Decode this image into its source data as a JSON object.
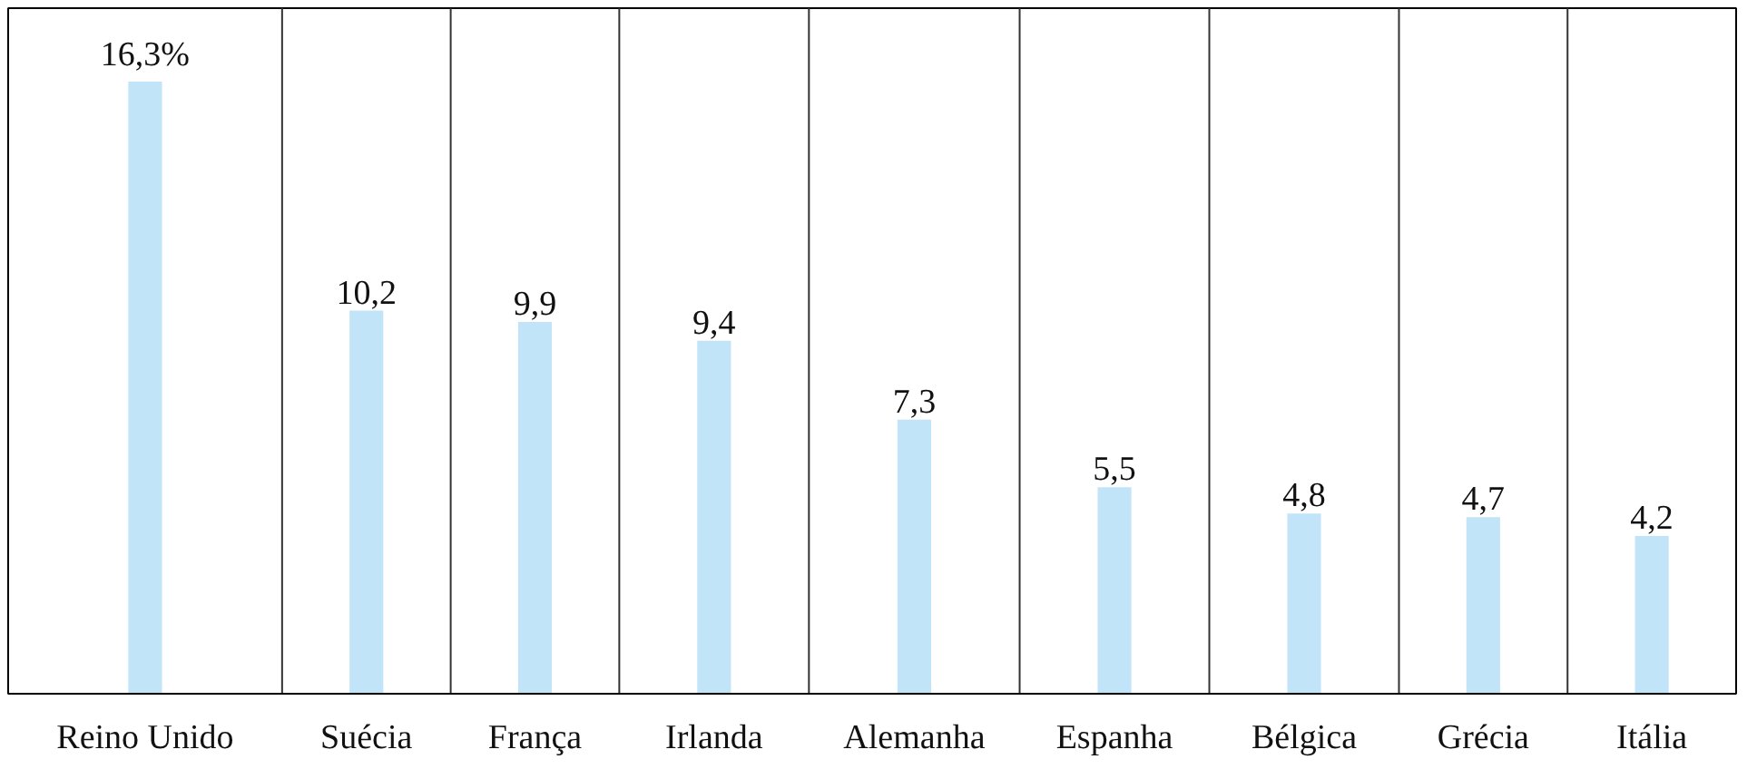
{
  "chart_data": {
    "type": "bar",
    "categories": [
      "Reino Unido",
      "Suécia",
      "França",
      "Irlanda",
      "Alemanha",
      "Espanha",
      "Bélgica",
      "Grécia",
      "Itália"
    ],
    "values": [
      16.3,
      10.2,
      9.9,
      9.4,
      7.3,
      5.5,
      4.8,
      4.7,
      4.2
    ],
    "value_labels": [
      "16,3%",
      "10,2",
      "9,9",
      "9,4",
      "7,3",
      "5,5",
      "4,8",
      "4,7",
      "4,2"
    ],
    "color": "#c2e4f8"
  }
}
